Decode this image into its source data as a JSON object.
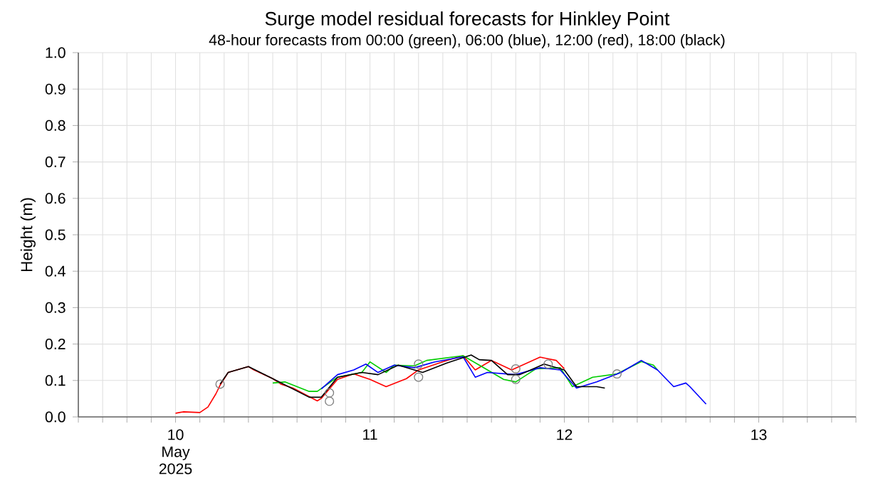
{
  "chart_data": {
    "type": "line",
    "title": "Surge model residual forecasts for Hinkley Point",
    "subtitle": "48-hour forecasts from 00:00 (green), 06:00 (blue), 12:00 (red), 18:00 (black)",
    "ylabel": "Height (m)",
    "xlim": [
      "2025-05-09T12:00",
      "2025-05-13T12:00"
    ],
    "ylim": [
      0,
      1
    ],
    "xticks": [
      {
        "value": "2025-05-09T12:00",
        "label": null
      },
      {
        "value": "2025-05-09T15:00",
        "label": null
      },
      {
        "value": "2025-05-09T18:00",
        "label": null
      },
      {
        "value": "2025-05-09T21:00",
        "label": null
      },
      {
        "value": "2025-05-10T00:00",
        "label": "10 May 2025"
      },
      {
        "value": "2025-05-10T03:00",
        "label": null
      },
      {
        "value": "2025-05-10T06:00",
        "label": null
      },
      {
        "value": "2025-05-10T09:00",
        "label": null
      },
      {
        "value": "2025-05-10T12:00",
        "label": null
      },
      {
        "value": "2025-05-10T15:00",
        "label": null
      },
      {
        "value": "2025-05-10T18:00",
        "label": null
      },
      {
        "value": "2025-05-10T21:00",
        "label": null
      },
      {
        "value": "2025-05-11T00:00",
        "label": "11"
      },
      {
        "value": "2025-05-11T03:00",
        "label": null
      },
      {
        "value": "2025-05-11T06:00",
        "label": null
      },
      {
        "value": "2025-05-11T09:00",
        "label": null
      },
      {
        "value": "2025-05-11T12:00",
        "label": null
      },
      {
        "value": "2025-05-11T15:00",
        "label": null
      },
      {
        "value": "2025-05-11T18:00",
        "label": null
      },
      {
        "value": "2025-05-11T21:00",
        "label": null
      },
      {
        "value": "2025-05-12T00:00",
        "label": "12"
      },
      {
        "value": "2025-05-12T03:00",
        "label": null
      },
      {
        "value": "2025-05-12T06:00",
        "label": null
      },
      {
        "value": "2025-05-12T09:00",
        "label": null
      },
      {
        "value": "2025-05-12T12:00",
        "label": null
      },
      {
        "value": "2025-05-12T15:00",
        "label": null
      },
      {
        "value": "2025-05-12T18:00",
        "label": null
      },
      {
        "value": "2025-05-12T21:00",
        "label": null
      },
      {
        "value": "2025-05-13T00:00",
        "label": "13"
      },
      {
        "value": "2025-05-13T03:00",
        "label": null
      },
      {
        "value": "2025-05-13T06:00",
        "label": null
      },
      {
        "value": "2025-05-13T09:00",
        "label": null
      },
      {
        "value": "2025-05-13T12:00",
        "label": null
      }
    ],
    "yticks": [
      {
        "value": 0,
        "label": "0.0"
      },
      {
        "value": 0.1,
        "label": "0.1"
      },
      {
        "value": 0.2,
        "label": "0.2"
      },
      {
        "value": 0.3,
        "label": "0.3"
      },
      {
        "value": 0.4,
        "label": "0.4"
      },
      {
        "value": 0.5,
        "label": "0.5"
      },
      {
        "value": 0.6,
        "label": "0.6"
      },
      {
        "value": 0.7,
        "label": "0.7"
      },
      {
        "value": 0.8,
        "label": "0.8"
      },
      {
        "value": 0.9,
        "label": "0.9"
      },
      {
        "value": 1,
        "label": "1.0"
      }
    ],
    "grid": true,
    "series": [
      {
        "color": "#ff0000",
        "x": [
          "2025-05-10T00:00",
          "2025-05-10T01:00",
          "2025-05-10T03:00",
          "2025-05-10T04:00",
          "2025-05-10T05:00",
          "2025-05-10T05:30",
          "2025-05-10T06:30",
          "2025-05-10T09:00",
          "2025-05-10T09:30",
          "2025-05-10T12:00",
          "2025-05-10T13:00",
          "2025-05-10T14:30",
          "2025-05-10T17:30",
          "2025-05-10T18:00",
          "2025-05-10T20:00",
          "2025-05-10T22:00",
          "2025-05-11T00:00",
          "2025-05-11T02:00",
          "2025-05-11T04:30",
          "2025-05-11T06:00",
          "2025-05-11T09:30",
          "2025-05-11T11:30",
          "2025-05-11T13:00",
          "2025-05-11T15:00",
          "2025-05-11T17:30",
          "2025-05-11T21:00",
          "2025-05-11T23:00",
          "2025-05-12T00:00"
        ],
        "values": [
          0.01,
          0.014,
          0.012,
          0.027,
          0.064,
          0.087,
          0.122,
          0.138,
          0.131,
          0.105,
          0.09,
          0.079,
          0.044,
          0.051,
          0.103,
          0.118,
          0.103,
          0.083,
          0.105,
          0.129,
          0.155,
          0.168,
          0.129,
          0.155,
          0.129,
          0.164,
          0.155,
          0.132
        ]
      },
      {
        "color": "#00cc00",
        "x": [
          "2025-05-10T12:00",
          "2025-05-10T13:30",
          "2025-05-10T16:30",
          "2025-05-10T17:30",
          "2025-05-10T20:00",
          "2025-05-10T23:00",
          "2025-05-11T00:00",
          "2025-05-11T02:00",
          "2025-05-11T03:00",
          "2025-05-11T05:30",
          "2025-05-11T07:00",
          "2025-05-11T11:30",
          "2025-05-11T13:30",
          "2025-05-11T16:30",
          "2025-05-11T18:00",
          "2025-05-11T20:30",
          "2025-05-11T23:30",
          "2025-05-12T01:00",
          "2025-05-12T03:30",
          "2025-05-12T06:30",
          "2025-05-12T09:30",
          "2025-05-12T11:00",
          "2025-05-12T11:30"
        ],
        "values": [
          0.093,
          0.096,
          0.07,
          0.07,
          0.109,
          0.122,
          0.151,
          0.122,
          0.142,
          0.14,
          0.155,
          0.168,
          0.142,
          0.103,
          0.096,
          0.132,
          0.135,
          0.083,
          0.109,
          0.118,
          0.152,
          0.142,
          0.129
        ]
      },
      {
        "color": "#0000ff",
        "x": [
          "2025-05-10T18:00",
          "2025-05-10T20:00",
          "2025-05-10T22:00",
          "2025-05-10T23:30",
          "2025-05-11T01:00",
          "2025-05-11T03:00",
          "2025-05-11T05:30",
          "2025-05-11T08:00",
          "2025-05-11T11:30",
          "2025-05-11T13:00",
          "2025-05-11T14:30",
          "2025-05-11T18:00",
          "2025-05-11T21:00",
          "2025-05-11T23:30",
          "2025-05-12T01:30",
          "2025-05-12T04:00",
          "2025-05-12T07:00",
          "2025-05-12T09:30",
          "2025-05-12T11:30",
          "2025-05-12T13:30",
          "2025-05-12T15:00",
          "2025-05-12T15:30",
          "2025-05-12T17:30"
        ],
        "values": [
          0.077,
          0.116,
          0.129,
          0.145,
          0.122,
          0.142,
          0.135,
          0.151,
          0.165,
          0.109,
          0.122,
          0.116,
          0.135,
          0.129,
          0.079,
          0.096,
          0.122,
          0.155,
          0.129,
          0.083,
          0.093,
          0.083,
          0.035
        ]
      },
      {
        "color": "#000000",
        "x": [
          "2025-05-10T05:30",
          "2025-05-10T06:30",
          "2025-05-10T09:00",
          "2025-05-10T12:00",
          "2025-05-10T16:30",
          "2025-05-10T18:00",
          "2025-05-10T20:00",
          "2025-05-10T23:00",
          "2025-05-11T01:00",
          "2025-05-11T03:30",
          "2025-05-11T06:30",
          "2025-05-11T09:30",
          "2025-05-11T12:30",
          "2025-05-11T13:30",
          "2025-05-11T15:00",
          "2025-05-11T17:00",
          "2025-05-11T18:30",
          "2025-05-11T21:30",
          "2025-05-12T00:00",
          "2025-05-12T01:30",
          "2025-05-12T04:00",
          "2025-05-12T05:00"
        ],
        "values": [
          0.09,
          0.122,
          0.138,
          0.105,
          0.054,
          0.054,
          0.109,
          0.122,
          0.116,
          0.142,
          0.122,
          0.148,
          0.17,
          0.157,
          0.155,
          0.116,
          0.116,
          0.145,
          0.129,
          0.083,
          0.083,
          0.079
        ]
      },
      {
        "type": "scatter",
        "marker": "circle",
        "color": "#808080",
        "x": [
          "2025-05-10T05:30",
          "2025-05-10T19:00",
          "2025-05-10T19:00",
          "2025-05-11T06:00",
          "2025-05-11T06:00",
          "2025-05-11T18:00",
          "2025-05-11T18:00",
          "2025-05-11T22:00",
          "2025-05-12T06:30"
        ],
        "values": [
          0.09,
          0.066,
          0.043,
          0.145,
          0.109,
          0.132,
          0.103,
          0.145,
          0.118
        ]
      }
    ]
  }
}
